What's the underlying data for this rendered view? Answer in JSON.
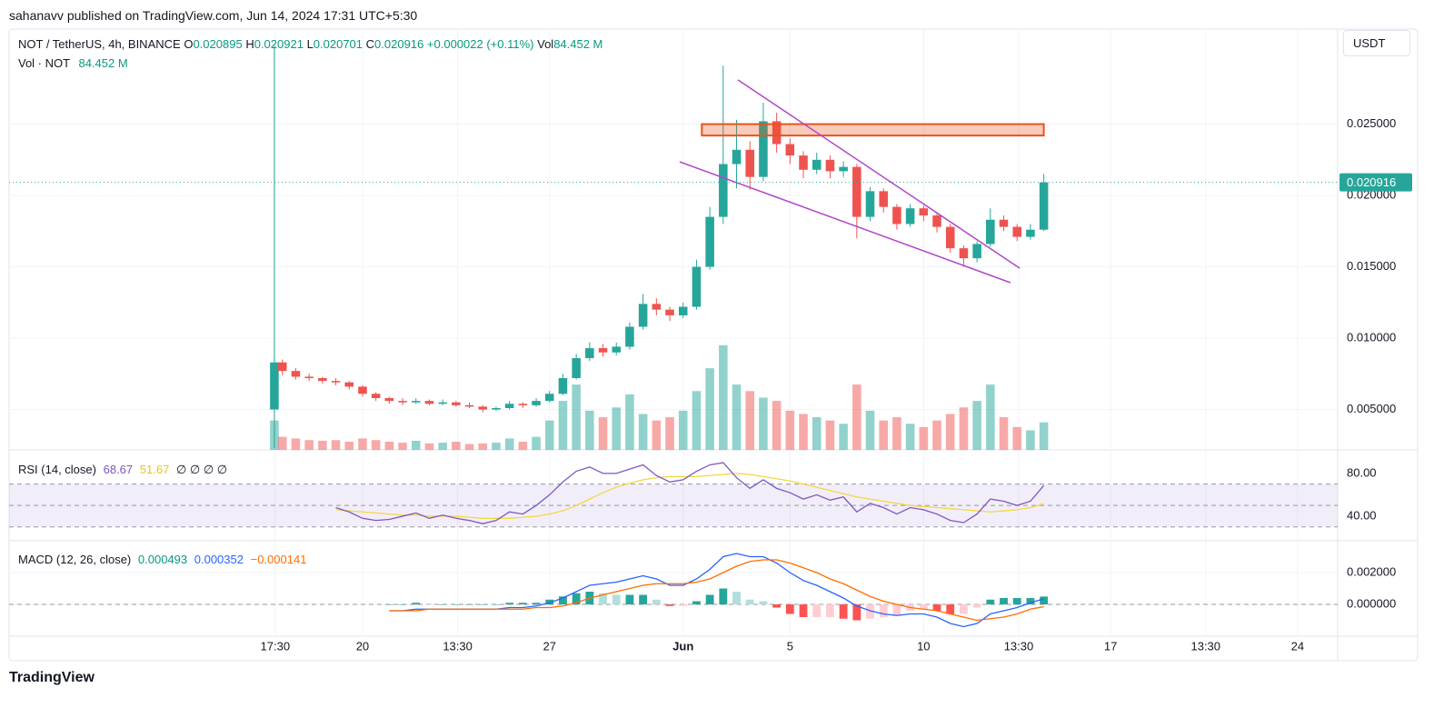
{
  "header": {
    "published": "sahanavv published on TradingView.com, Jun 14, 2024 17:31 UTC+5:30",
    "logo": "TradingView"
  },
  "chart_data": [
    {
      "type": "candlestick",
      "title": "NOT / TetherUS, 4h, BINANCE",
      "currency": "USDT",
      "legend": {
        "open_label": "O",
        "open": 0.020895,
        "high_label": "H",
        "high": 0.020921,
        "low_label": "L",
        "low": 0.020701,
        "close_label": "C",
        "close": 0.020916,
        "change": "+0.000022 (+0.11%)",
        "volume_label": "Vol",
        "volume": "84.452 M",
        "volume_title": "Vol · NOT"
      },
      "up_color": "#26a69a",
      "down_color": "#ef5350",
      "x": [
        16.7,
        17,
        17.5,
        18,
        18.5,
        19,
        19.5,
        20,
        20.5,
        21,
        21.5,
        22,
        22.5,
        23,
        23.5,
        24,
        24.5,
        25,
        25.5,
        26,
        26.5,
        27,
        27.5,
        28,
        28.5,
        29,
        29.5,
        30,
        30.5,
        31,
        31.5,
        32,
        32.5,
        33,
        33.5,
        34,
        34.5,
        35,
        35.5,
        36,
        36.5,
        37,
        37.5,
        38,
        38.5,
        39,
        39.5,
        40,
        40.5,
        41,
        41.5,
        42,
        42.5,
        43,
        43.5,
        44,
        44.5,
        45,
        45.5
      ],
      "open": [
        0.005,
        0.0083,
        0.0077,
        0.0073,
        0.0072,
        0.007,
        0.0069,
        0.0066,
        0.0061,
        0.0058,
        0.0056,
        0.0055,
        0.0056,
        0.0054,
        0.0055,
        0.0053,
        0.0052,
        0.005,
        0.0051,
        0.0054,
        0.0053,
        0.0056,
        0.0061,
        0.0072,
        0.0086,
        0.0093,
        0.009,
        0.0094,
        0.0108,
        0.0124,
        0.012,
        0.0116,
        0.0122,
        0.015,
        0.0185,
        0.0222,
        0.0232,
        0.0213,
        0.0252,
        0.0236,
        0.0228,
        0.0218,
        0.0225,
        0.0217,
        0.022,
        0.0185,
        0.0203,
        0.0192,
        0.018,
        0.0191,
        0.0186,
        0.0178,
        0.0163,
        0.0156,
        0.0166,
        0.0183,
        0.0178,
        0.0171,
        0.0176
      ],
      "high": [
        0.0305,
        0.0085,
        0.0079,
        0.0075,
        0.0073,
        0.0072,
        0.007,
        0.0067,
        0.0062,
        0.0059,
        0.0058,
        0.0058,
        0.0057,
        0.0057,
        0.0056,
        0.0055,
        0.0053,
        0.0052,
        0.0056,
        0.0055,
        0.0058,
        0.0063,
        0.0075,
        0.0089,
        0.0097,
        0.0096,
        0.0097,
        0.0111,
        0.0131,
        0.0128,
        0.0122,
        0.0125,
        0.0155,
        0.0192,
        0.0291,
        0.0253,
        0.0238,
        0.0265,
        0.0258,
        0.024,
        0.0231,
        0.023,
        0.0228,
        0.0224,
        0.0222,
        0.0206,
        0.0205,
        0.0194,
        0.0194,
        0.0193,
        0.0188,
        0.018,
        0.0165,
        0.0168,
        0.0191,
        0.0186,
        0.018,
        0.018,
        0.0215
      ],
      "low": [
        0.0023,
        0.0074,
        0.0071,
        0.007,
        0.0068,
        0.0067,
        0.0064,
        0.0059,
        0.0056,
        0.0054,
        0.0053,
        0.0054,
        0.0053,
        0.0053,
        0.0052,
        0.0051,
        0.0048,
        0.0049,
        0.005,
        0.0051,
        0.0052,
        0.0055,
        0.006,
        0.0071,
        0.0084,
        0.0087,
        0.0088,
        0.0092,
        0.0106,
        0.0116,
        0.0112,
        0.0114,
        0.012,
        0.0148,
        0.018,
        0.0205,
        0.0204,
        0.021,
        0.023,
        0.0222,
        0.0212,
        0.0215,
        0.0212,
        0.0213,
        0.017,
        0.0182,
        0.0188,
        0.0176,
        0.0178,
        0.0182,
        0.0174,
        0.016,
        0.015,
        0.0153,
        0.0164,
        0.0175,
        0.0168,
        0.0169,
        0.0175
      ],
      "close": [
        0.0083,
        0.0077,
        0.0073,
        0.0072,
        0.007,
        0.0069,
        0.0066,
        0.0061,
        0.0058,
        0.0056,
        0.0055,
        0.0056,
        0.0054,
        0.0055,
        0.0053,
        0.0052,
        0.005,
        0.0051,
        0.0054,
        0.0053,
        0.0056,
        0.0061,
        0.0072,
        0.0086,
        0.0093,
        0.009,
        0.0094,
        0.0108,
        0.0124,
        0.012,
        0.0116,
        0.0122,
        0.015,
        0.0185,
        0.0222,
        0.0232,
        0.0213,
        0.0252,
        0.0236,
        0.0228,
        0.0218,
        0.0225,
        0.0217,
        0.022,
        0.0185,
        0.0203,
        0.0192,
        0.018,
        0.0191,
        0.0186,
        0.0178,
        0.0163,
        0.0156,
        0.0166,
        0.0183,
        0.0178,
        0.0171,
        0.0176,
        0.020916
      ],
      "volume": [
        90,
        40,
        35,
        30,
        28,
        30,
        25,
        35,
        30,
        25,
        22,
        28,
        20,
        22,
        25,
        18,
        20,
        22,
        35,
        25,
        40,
        90,
        150,
        200,
        120,
        100,
        130,
        170,
        110,
        90,
        100,
        120,
        180,
        250,
        320,
        200,
        180,
        160,
        150,
        120,
        110,
        100,
        90,
        80,
        200,
        120,
        90,
        100,
        80,
        70,
        90,
        110,
        130,
        150,
        200,
        100,
        70,
        60,
        84.452
      ],
      "xlim": [
        6.77,
        56.5
      ],
      "ylim": [
        0.00217,
        0.03166
      ],
      "xticks": [
        {
          "value": 16.73,
          "label": "17:30"
        },
        20,
        {
          "value": 23.56,
          "label": "13:30"
        },
        27,
        {
          "value": 32,
          "label": "Jun"
        },
        {
          "value": 36,
          "label": "5"
        },
        {
          "value": 41,
          "label": "10"
        },
        {
          "value": 44.56,
          "label": "13:30"
        },
        {
          "value": 48,
          "label": "17"
        },
        {
          "value": 51.56,
          "label": "13:30"
        },
        {
          "value": 55,
          "label": "24"
        }
      ],
      "yticks": [
        {
          "value": 0.025,
          "label": "0.025000"
        },
        {
          "value": 0.02,
          "label": "0.020000"
        },
        {
          "value": 0.015,
          "label": "0.015000"
        },
        {
          "value": 0.01,
          "label": "0.010000"
        },
        {
          "value": 0.005,
          "label": "0.005000"
        }
      ],
      "drawings": {
        "resistance_zone": {
          "x": [
            32.7,
            45.5
          ],
          "y": [
            0.0242,
            0.025
          ],
          "color": "#e8541c"
        },
        "wedge_upper": {
          "x": [
            34.05,
            44.6
          ],
          "y": [
            0.0281,
            0.0149
          ],
          "color": "#b345c9"
        },
        "wedge_lower": {
          "x": [
            31.87,
            44.25
          ],
          "y": [
            0.02236,
            0.01389
          ],
          "color": "#b345c9"
        }
      }
    },
    {
      "type": "rsi",
      "title": "RSI (14, close)",
      "legend_values": [
        68.67,
        51.67
      ],
      "legend_extra": "∅ ∅ ∅ ∅",
      "x": [
        19,
        19.5,
        20,
        20.5,
        21,
        21.5,
        22,
        22.5,
        23,
        23.5,
        24,
        24.5,
        25,
        25.5,
        26,
        26.5,
        27,
        27.5,
        28,
        28.5,
        29,
        29.5,
        30,
        30.5,
        31,
        31.5,
        32,
        32.5,
        33,
        33.5,
        34,
        34.5,
        35,
        35.5,
        36,
        36.5,
        37,
        37.5,
        38,
        38.5,
        39,
        39.5,
        40,
        40.5,
        41,
        41.5,
        42,
        42.5,
        43,
        43.5,
        44,
        44.5,
        45,
        45.5
      ],
      "series": [
        {
          "color": "#7e57c2",
          "values": [
            48,
            44,
            38,
            36,
            37,
            40,
            43,
            38,
            41,
            38,
            36,
            33,
            36,
            44,
            42,
            50,
            60,
            72,
            82,
            86,
            80,
            80,
            84,
            88,
            78,
            72,
            74,
            82,
            88,
            90,
            76,
            66,
            74,
            66,
            62,
            56,
            60,
            55,
            58,
            44,
            52,
            48,
            42,
            48,
            46,
            42,
            36,
            34,
            42,
            56,
            54,
            50,
            54,
            68.67
          ]
        },
        {
          "color": "#f5d742",
          "values": [
            46,
            45,
            44,
            43,
            42,
            41,
            41,
            40,
            40,
            40,
            39,
            38,
            38,
            38,
            39,
            40,
            42,
            45,
            50,
            56,
            62,
            67,
            71,
            74,
            76,
            77,
            77,
            77,
            78,
            79,
            80,
            79,
            77,
            75,
            73,
            70,
            67,
            64,
            61,
            58,
            56,
            54,
            52,
            50,
            49,
            48,
            47,
            46,
            45,
            44,
            45,
            46,
            48,
            51.67
          ]
        }
      ],
      "ylim": [
        17,
        102
      ],
      "yticks": [
        {
          "value": 80,
          "label": "80.00"
        },
        {
          "value": 40,
          "label": "40.00"
        }
      ],
      "bands": [
        30,
        50,
        70
      ]
    },
    {
      "type": "macd",
      "title": "MACD (12, 26, close)",
      "legend_values": [
        0.000493,
        0.000352,
        -0.000141
      ],
      "legend_labels": [
        "0.000493",
        "0.000352",
        "−0.000141"
      ],
      "x": [
        21,
        21.5,
        22,
        22.5,
        23,
        23.5,
        24,
        24.5,
        25,
        25.5,
        26,
        26.5,
        27,
        27.5,
        28,
        28.5,
        29,
        29.5,
        30,
        30.5,
        31,
        31.5,
        32,
        32.5,
        33,
        33.5,
        34,
        34.5,
        35,
        35.5,
        36,
        36.5,
        37,
        37.5,
        38,
        38.5,
        39,
        39.5,
        40,
        40.5,
        41,
        41.5,
        42,
        42.5,
        43,
        43.5,
        44,
        44.5,
        45,
        45.5
      ],
      "histogram": [
        0,
        0,
        0.0001,
        0,
        0,
        0,
        0,
        0,
        0,
        0.0001,
        0.0001,
        0.0001,
        0.0003,
        0.0005,
        0.0007,
        0.0008,
        0.0007,
        0.0006,
        0.0006,
        0.0006,
        0.0003,
        -0.0001,
        -0.0001,
        0.0002,
        0.0006,
        0.001,
        0.0008,
        0.0003,
        0.0002,
        -0.0002,
        -0.0006,
        -0.0008,
        -0.0008,
        -0.0008,
        -0.0009,
        -0.001,
        -0.0009,
        -0.0008,
        -0.0007,
        -0.0004,
        -0.0003,
        -0.0004,
        -0.0006,
        -0.0006,
        -0.0002,
        0.0003,
        0.0004,
        0.0004,
        0.0004,
        0.000493
      ],
      "series": [
        {
          "color": "#2962ff",
          "values": [
            -0.0004,
            -0.0004,
            -0.0003,
            -0.0003,
            -0.0003,
            -0.0003,
            -0.0003,
            -0.0003,
            -0.0003,
            -0.0002,
            -0.0002,
            -0.0001,
            0.0001,
            0.0004,
            0.0008,
            0.0012,
            0.0013,
            0.0014,
            0.0016,
            0.0018,
            0.0016,
            0.0012,
            0.0012,
            0.0016,
            0.0022,
            0.003,
            0.0032,
            0.003,
            0.003,
            0.0026,
            0.002,
            0.0015,
            0.0012,
            0.0008,
            0.0004,
            -0.0001,
            -0.0004,
            -0.0006,
            -0.0007,
            -0.0006,
            -0.0006,
            -0.0008,
            -0.0012,
            -0.0014,
            -0.0012,
            -0.0006,
            -0.0004,
            -0.0002,
            0.0001,
            0.000352
          ]
        },
        {
          "color": "#ff6d00",
          "values": [
            -0.0004,
            -0.0004,
            -0.0004,
            -0.0003,
            -0.0003,
            -0.0003,
            -0.0003,
            -0.0003,
            -0.0003,
            -0.0003,
            -0.0003,
            -0.0002,
            -0.0002,
            -0.0001,
            0.0001,
            0.0004,
            0.0006,
            0.0008,
            0.001,
            0.0012,
            0.0013,
            0.0013,
            0.0013,
            0.0014,
            0.0016,
            0.002,
            0.0024,
            0.0027,
            0.0028,
            0.0028,
            0.0026,
            0.0023,
            0.002,
            0.0016,
            0.0013,
            0.0009,
            0.0005,
            0.0002,
            0,
            -0.0002,
            -0.0003,
            -0.0004,
            -0.0006,
            -0.0008,
            -0.001,
            -0.0009,
            -0.0008,
            -0.0006,
            -0.0003,
            -0.000141
          ]
        }
      ],
      "ylim": [
        -0.002,
        0.004
      ],
      "yticks": [
        {
          "value": 0.002,
          "label": "0.002000"
        },
        {
          "value": 0,
          "label": "0.000000"
        }
      ]
    }
  ]
}
